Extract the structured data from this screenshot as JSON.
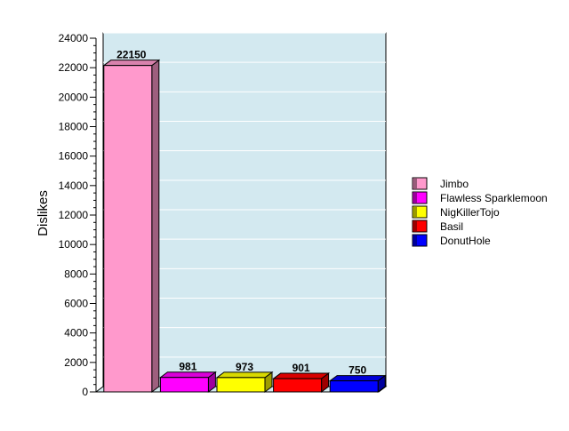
{
  "chart_data": {
    "type": "bar",
    "categories": [
      "Jimbo",
      "Flawless Sparklemoon",
      "NigKillerTojo",
      "Basil",
      "DonutHole"
    ],
    "values": [
      22150,
      981,
      973,
      901,
      750
    ],
    "data_labels": [
      "22150",
      "981",
      "973",
      "901",
      "750"
    ],
    "xlabel": "",
    "ylabel": "Dislikes",
    "ylim": [
      0,
      24000
    ],
    "yticks": [
      0,
      2000,
      4000,
      6000,
      8000,
      10000,
      12000,
      14000,
      16000,
      18000,
      20000,
      22000,
      24000
    ],
    "grid": true,
    "legend_position": "right",
    "style": "3d-bar",
    "plot_background": "#d3e9f0",
    "colors": [
      "#ff99cc",
      "#ff00ff",
      "#ffff00",
      "#ff0000",
      "#0000ff"
    ]
  }
}
